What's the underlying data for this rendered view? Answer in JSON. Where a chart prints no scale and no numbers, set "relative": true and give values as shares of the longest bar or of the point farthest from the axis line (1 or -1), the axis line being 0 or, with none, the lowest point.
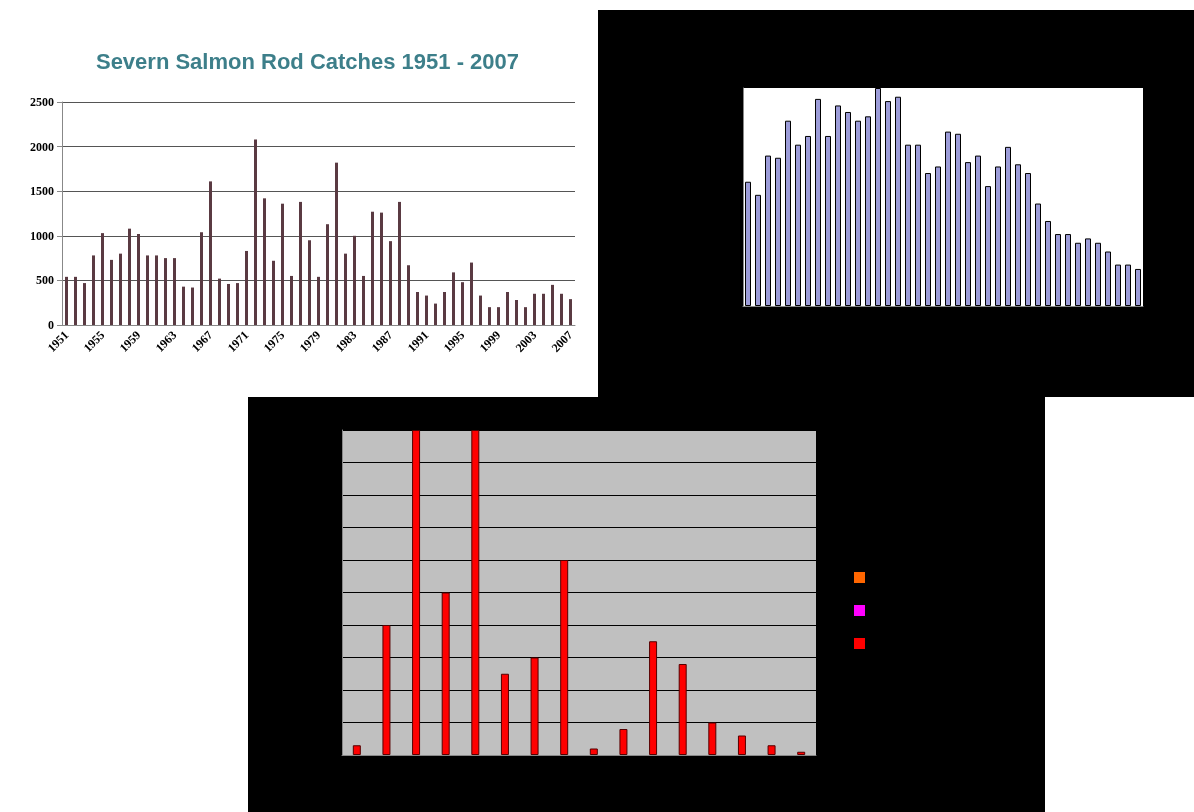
{
  "chart_data": [
    {
      "type": "bar",
      "title": "Severn Salmon Rod Catches 1951 - 2007",
      "categories": [
        "1951",
        null,
        null,
        null,
        "1955",
        null,
        null,
        null,
        "1959",
        null,
        null,
        null,
        "1963",
        null,
        null,
        null,
        "1967",
        null,
        null,
        null,
        "1971",
        null,
        null,
        null,
        "1975",
        null,
        null,
        null,
        "1979",
        null,
        null,
        null,
        "1983",
        null,
        null,
        null,
        "1987",
        null,
        null,
        null,
        "1991",
        null,
        null,
        null,
        "1995",
        null,
        null,
        null,
        "1999",
        null,
        null,
        null,
        "2003",
        null,
        null,
        null,
        "2007"
      ],
      "series": [
        {
          "color": "#5a3a42",
          "values": [
            540,
            540,
            470,
            780,
            1030,
            730,
            800,
            1080,
            1020,
            780,
            780,
            750,
            750,
            430,
            420,
            1040,
            1610,
            520,
            460,
            470,
            830,
            2080,
            1420,
            720,
            1360,
            550,
            1380,
            950,
            540,
            1130,
            1820,
            800,
            1000,
            550,
            1270,
            1260,
            940,
            1380,
            670,
            370,
            330,
            240,
            370,
            590,
            480,
            700,
            330,
            200,
            200,
            370,
            280,
            200,
            350,
            350,
            450,
            350,
            290
          ]
        }
      ],
      "ylim": [
        0,
        2500
      ],
      "yticks": [
        0,
        500,
        1000,
        1500,
        2000,
        2500
      ],
      "grid": "y"
    },
    {
      "type": "bar",
      "relative": true,
      "categories": [
        null,
        null,
        null,
        null,
        null,
        null,
        null,
        null,
        null,
        null,
        null,
        null,
        null,
        null,
        null,
        null,
        null,
        null,
        null,
        null,
        null,
        null,
        null,
        null,
        null,
        null,
        null,
        null,
        null,
        null,
        null,
        null,
        null,
        null,
        null,
        null,
        null,
        null,
        null,
        null
      ],
      "series": [
        {
          "color": "#9c9cd8",
          "values": [
            0.57,
            0.51,
            0.69,
            0.68,
            0.85,
            0.74,
            0.78,
            0.95,
            0.78,
            0.92,
            0.89,
            0.85,
            0.87,
            1,
            0.94,
            0.96,
            0.74,
            0.74,
            0.61,
            0.64,
            0.8,
            0.79,
            0.66,
            0.69,
            0.55,
            0.64,
            0.73,
            0.65,
            0.61,
            0.47,
            0.39,
            0.33,
            0.33,
            0.29,
            0.31,
            0.29,
            0.25,
            0.19,
            0.19,
            0.17
          ]
        }
      ]
    },
    {
      "type": "bar",
      "relative": true,
      "grid": "y",
      "categories": [
        null,
        null,
        null,
        null,
        null,
        null,
        null,
        null,
        null,
        null,
        null,
        null,
        null,
        null,
        null,
        null
      ],
      "series": [
        {
          "color": "#ff0000",
          "values": [
            0.03,
            0.4,
            1,
            0.5,
            1,
            0.25,
            0.3,
            0.6,
            0.02,
            0.08,
            0.35,
            0.28,
            0.1,
            0.06,
            0.03,
            0.01
          ]
        }
      ]
    }
  ]
}
